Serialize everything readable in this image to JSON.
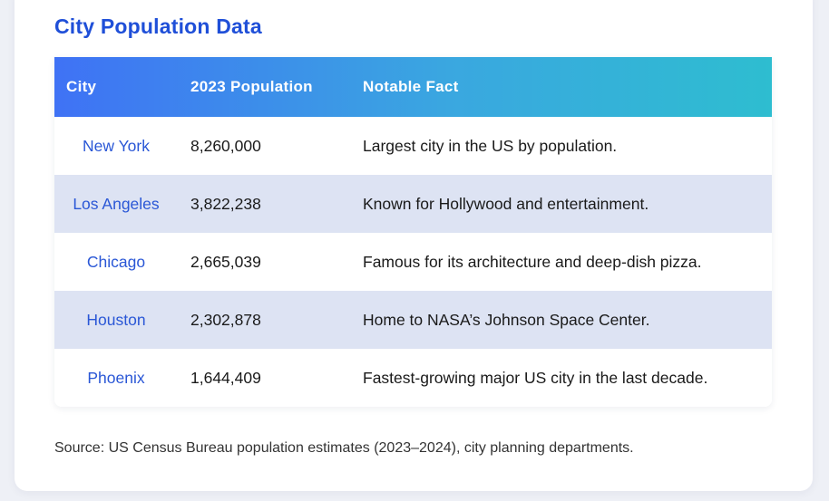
{
  "title": "City Population Data",
  "table": {
    "headers": [
      "City",
      "2023 Population",
      "Notable Fact"
    ],
    "rows": [
      {
        "city": "New York",
        "population": "8,260,000",
        "fact": "Largest city in the US by population."
      },
      {
        "city": "Los Angeles",
        "population": "3,822,238",
        "fact": "Known for Hollywood and entertainment."
      },
      {
        "city": "Chicago",
        "population": "2,665,039",
        "fact": "Famous for its architecture and deep-dish pizza."
      },
      {
        "city": "Houston",
        "population": "2,302,878",
        "fact": "Home to NASA’s Johnson Space Center."
      },
      {
        "city": "Phoenix",
        "population": "1,644,409",
        "fact": "Fastest-growing major US city in the last decade."
      }
    ]
  },
  "source": "Source: US Census Bureau population estimates (2023–2024), city planning departments.",
  "colors": {
    "title": "#1f4fd8",
    "city_link": "#2a57d6",
    "header_gradient_start": "#3f72f5",
    "header_gradient_end": "#2ebdd0",
    "stripe": "#dde3f3"
  }
}
